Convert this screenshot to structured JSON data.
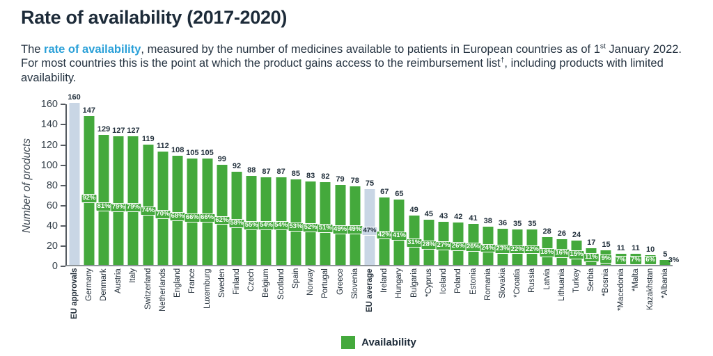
{
  "header": {
    "title": "Rate of availability (2017-2020)",
    "intro": {
      "part1": "The ",
      "highlight": "rate of availability",
      "part2": ", measured by the number of medicines available to patients in European countries as of 1",
      "sup1": "st",
      "part3": " January 2022. For most countries this is the point at which the product gains access to the reimbursement list",
      "sup2": "†",
      "part4": ", including products with limited availability."
    }
  },
  "chart_data": {
    "type": "bar",
    "title": "Rate of availability (2017-2020)",
    "xlabel": "",
    "ylabel": "Number of products",
    "ylim": [
      0,
      160
    ],
    "yticks": [
      0,
      20,
      40,
      60,
      80,
      100,
      120,
      140,
      160
    ],
    "grid": false,
    "legend_position": "bottom-center",
    "legend": [
      {
        "label": "Availability",
        "color": "#44a93c"
      }
    ],
    "colors": {
      "bar": "#44a93c",
      "highlight_bar": "#c9d6e5",
      "value_label": "#22303c",
      "pct_text": "#ffffff",
      "accent_blue": "#2aa0d8"
    },
    "bars": [
      {
        "label": "EU approvals",
        "value": 160,
        "pct": null,
        "highlight": true
      },
      {
        "label": "Germany",
        "value": 147,
        "pct": "92%"
      },
      {
        "label": "Denmark",
        "value": 129,
        "pct": "81%"
      },
      {
        "label": "Austria",
        "value": 127,
        "pct": "79%"
      },
      {
        "label": "Italy",
        "value": 127,
        "pct": "79%"
      },
      {
        "label": "Switzerland",
        "value": 119,
        "pct": "74%"
      },
      {
        "label": "Netherlands",
        "value": 112,
        "pct": "70%"
      },
      {
        "label": "England",
        "value": 108,
        "pct": "68%"
      },
      {
        "label": "France",
        "value": 105,
        "pct": "66%"
      },
      {
        "label": "Luxemburg",
        "value": 105,
        "pct": "66%"
      },
      {
        "label": "Sweden",
        "value": 99,
        "pct": "62%"
      },
      {
        "label": "Finland",
        "value": 92,
        "pct": "58%"
      },
      {
        "label": "Czech",
        "value": 88,
        "pct": "55%"
      },
      {
        "label": "Belgium",
        "value": 87,
        "pct": "54%"
      },
      {
        "label": "Scotland",
        "value": 87,
        "pct": "54%"
      },
      {
        "label": "Spain",
        "value": 85,
        "pct": "53%"
      },
      {
        "label": "Norway",
        "value": 83,
        "pct": "52%"
      },
      {
        "label": "Portugal",
        "value": 82,
        "pct": "51%"
      },
      {
        "label": "Greece",
        "value": 79,
        "pct": "49%"
      },
      {
        "label": "Slovenia",
        "value": 78,
        "pct": "49%"
      },
      {
        "label": "EU average",
        "value": 75,
        "pct": "47%",
        "highlight": true
      },
      {
        "label": "Ireland",
        "value": 67,
        "pct": "42%"
      },
      {
        "label": "Hungary",
        "value": 65,
        "pct": "41%"
      },
      {
        "label": "Bulgaria",
        "value": 49,
        "pct": "31%"
      },
      {
        "label": "*Cyprus",
        "value": 45,
        "pct": "28%"
      },
      {
        "label": "Iceland",
        "value": 43,
        "pct": "27%"
      },
      {
        "label": "Poland",
        "value": 42,
        "pct": "26%"
      },
      {
        "label": "Estonia",
        "value": 41,
        "pct": "26%"
      },
      {
        "label": "Romania",
        "value": 38,
        "pct": "24%"
      },
      {
        "label": "Slovakia",
        "value": 36,
        "pct": "23%"
      },
      {
        "label": "*Croatia",
        "value": 35,
        "pct": "22%"
      },
      {
        "label": "Russia",
        "value": 35,
        "pct": "22%"
      },
      {
        "label": "Latvia",
        "value": 28,
        "pct": "18%"
      },
      {
        "label": "Lithuania",
        "value": 26,
        "pct": "16%"
      },
      {
        "label": "Turkey",
        "value": 24,
        "pct": "15%"
      },
      {
        "label": "Serbia",
        "value": 17,
        "pct": "11%"
      },
      {
        "label": "*Bosnia",
        "value": 15,
        "pct": "9%"
      },
      {
        "label": "*Macedonia",
        "value": 11,
        "pct": "7%"
      },
      {
        "label": "*Malta",
        "value": 11,
        "pct": "7%"
      },
      {
        "label": "Kazakhstan",
        "value": 10,
        "pct": "6%"
      },
      {
        "label": "*Albania",
        "value": 5,
        "pct": "3%",
        "pct_outside": true
      }
    ]
  }
}
